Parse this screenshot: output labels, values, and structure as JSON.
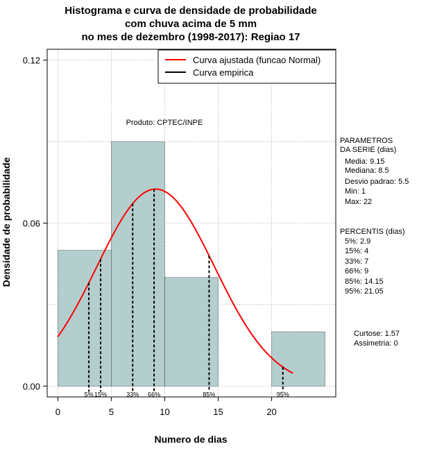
{
  "chart_data": {
    "type": "histogram",
    "title_lines": [
      "Histograma e curva de densidade de probabilidade",
      "com chuva acima de 5 mm",
      "no mes de dezembro (1998-2017): Regiao 17"
    ],
    "xlabel": "Numero de dias",
    "ylabel": "Densidade de probabilidade",
    "xlim": [
      -1,
      26
    ],
    "ylim": [
      -0.004,
      0.124
    ],
    "x_ticks": [
      0,
      5,
      10,
      15,
      20
    ],
    "x_tick_labels": [
      "0",
      "5",
      "10",
      "15",
      "20"
    ],
    "y_ticks": [
      0.0,
      0.06,
      0.12
    ],
    "y_tick_labels": [
      "0.00",
      "0.06",
      "0.12"
    ],
    "bins": [
      {
        "from": 0,
        "to": 5,
        "density": 0.05
      },
      {
        "from": 5,
        "to": 10,
        "density": 0.09
      },
      {
        "from": 10,
        "to": 15,
        "density": 0.04
      },
      {
        "from": 15,
        "to": 20,
        "density": 0.0
      },
      {
        "from": 20,
        "to": 25,
        "density": 0.02
      }
    ],
    "normal_curve": {
      "name": "Curva ajustada (funcao Normal)",
      "mean": 9.15,
      "sd": 5.5,
      "x_from": 0,
      "x_to": 22,
      "color": "#ff0000"
    },
    "empirical_curve_label": "Curva empirica",
    "percentile_lines": [
      {
        "label": "5%",
        "x": 2.9
      },
      {
        "label": "15%",
        "x": 4
      },
      {
        "label": "33%",
        "x": 7
      },
      {
        "label": "66%",
        "x": 9
      },
      {
        "label": "85%",
        "x": 14.15
      },
      {
        "label": "95%",
        "x": 21.05
      }
    ],
    "source_note": "Produto: CPTEC/INPE"
  },
  "stats_panel": {
    "params_title": [
      "PARAMETROS",
      "DA SERIE (dias)"
    ],
    "params": [
      "Media: 9.15",
      "Mediana: 8.5",
      "Desvio padrao: 5.5",
      "Min: 1",
      "Max: 22"
    ],
    "percentis_title": "PERCENTIS (dias)",
    "percentis": [
      "5%: 2.9",
      "15%: 4",
      "33%: 7",
      "66%: 9",
      "85%: 14.15",
      "95%: 21.05"
    ],
    "curtose": "Curtose: 1.57",
    "assimetria": "Assimetria: 0"
  },
  "colors": {
    "bar_fill": "#b4cece",
    "curve": "#ff0000",
    "grid": "#b0b0b0"
  }
}
